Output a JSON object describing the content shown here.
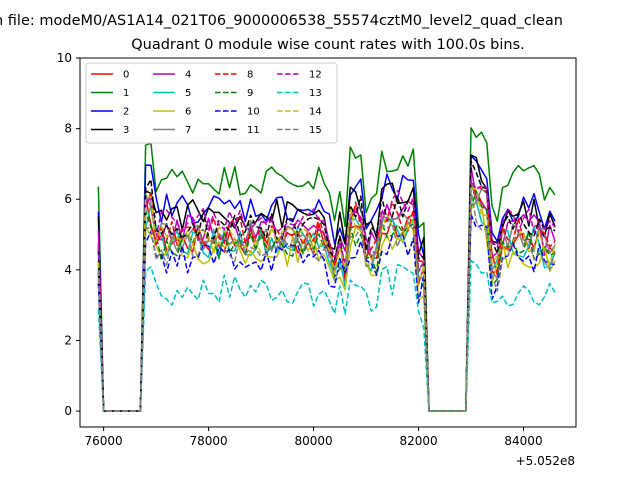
{
  "suptitle": "n file: modeM0/AS1A14_021T06_9000006538_55574cztM0_level2_quad_clean",
  "chart_data": {
    "type": "line",
    "title": "Quadrant 0 module wise count rates with 100.0s bins.",
    "xlabel": "",
    "ylabel": "",
    "x_offset_label": "+5.052e8",
    "xlim": [
      75550,
      85000
    ],
    "ylim": [
      -0.45,
      10
    ],
    "xticks": [
      76000,
      78000,
      80000,
      82000,
      84000
    ],
    "xtick_labels": [
      "76000",
      "78000",
      "80000",
      "82000",
      "84000"
    ],
    "yticks": [
      0,
      2,
      4,
      6,
      8,
      10
    ],
    "ytick_labels": [
      "0",
      "2",
      "4",
      "6",
      "8",
      "10"
    ],
    "grid": false,
    "legend_position": "upper left",
    "legend_columns": 4,
    "x_range": [
      75900,
      84600
    ],
    "x_step": 100,
    "series": [
      {
        "name": "0",
        "color": "#ff0000",
        "dash": false,
        "base": 5.4
      },
      {
        "name": "1",
        "color": "#008000",
        "dash": false,
        "base": 7.3
      },
      {
        "name": "2",
        "color": "#0000ff",
        "dash": false,
        "base": 6.4
      },
      {
        "name": "3",
        "color": "#000000",
        "dash": false,
        "base": 6.2
      },
      {
        "name": "4",
        "color": "#bf00bf",
        "dash": false,
        "base": 5.7
      },
      {
        "name": "5",
        "color": "#00bfbf",
        "dash": false,
        "base": 5.3
      },
      {
        "name": "6",
        "color": "#bfbf00",
        "dash": false,
        "base": 5.0
      },
      {
        "name": "7",
        "color": "#808080",
        "dash": false,
        "base": 5.5
      },
      {
        "name": "8",
        "color": "#ff0000",
        "dash": true,
        "base": 5.6
      },
      {
        "name": "9",
        "color": "#008000",
        "dash": true,
        "base": 5.2
      },
      {
        "name": "10",
        "color": "#0000ff",
        "dash": true,
        "base": 4.8
      },
      {
        "name": "11",
        "color": "#000000",
        "dash": true,
        "base": 5.9
      },
      {
        "name": "12",
        "color": "#bf00bf",
        "dash": true,
        "base": 6.0
      },
      {
        "name": "13",
        "color": "#00bfbf",
        "dash": true,
        "base": 3.8
      },
      {
        "name": "14",
        "color": "#bfbf00",
        "dash": true,
        "base": 5.4
      },
      {
        "name": "15",
        "color": "#808080",
        "dash": true,
        "base": 5.1
      }
    ],
    "gaps": [
      [
        76000,
        76700
      ],
      [
        82200,
        82900
      ]
    ]
  }
}
